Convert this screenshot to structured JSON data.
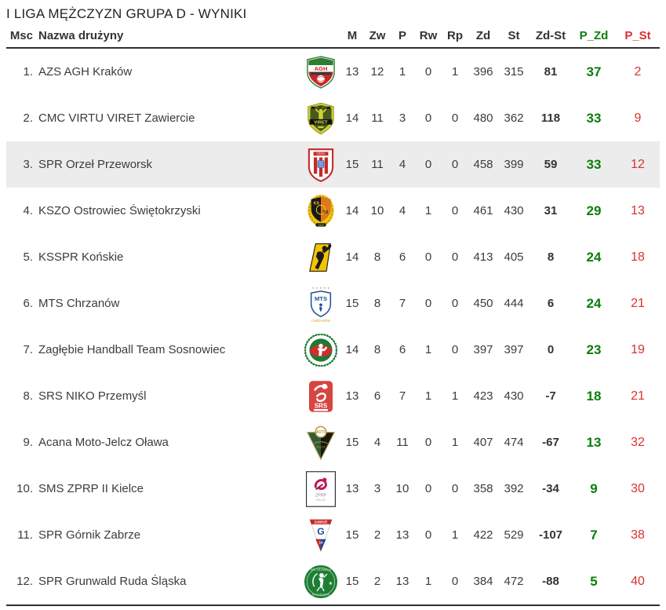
{
  "title": "I LIGA MĘŻCZYZN GRUPA D - WYNIKI",
  "colors": {
    "points_won_green": "#0b7d0b",
    "points_lost_red": "#da3030",
    "highlighted_row": "#ececec"
  },
  "table": {
    "headers": {
      "msc": "Msc",
      "team": "Nazwa drużyny",
      "m": "M",
      "zw": "Zw",
      "p": "P",
      "rw": "Rw",
      "rp": "Rp",
      "zd": "Zd",
      "st": "St",
      "zd_st": "Zd-St",
      "p_zd": "P_Zd",
      "p_st": "P_St"
    },
    "rows": [
      {
        "pos": "1.",
        "team": "AZS AGH Kraków",
        "logo": "agh-krakow-crest",
        "m": "13",
        "zw": "12",
        "p": "1",
        "rw": "0",
        "rp": "1",
        "zd": "396",
        "st": "315",
        "zd_st": "81",
        "p_zd": "37",
        "p_st": "2",
        "highlighted": false
      },
      {
        "pos": "2.",
        "team": "CMC VIRTU VIRET Zawiercie",
        "logo": "viret-zawiercie-crest",
        "m": "14",
        "zw": "11",
        "p": "3",
        "rw": "0",
        "rp": "0",
        "zd": "480",
        "st": "362",
        "zd_st": "118",
        "p_zd": "33",
        "p_st": "9",
        "highlighted": false
      },
      {
        "pos": "3.",
        "team": "SPR Orzeł Przeworsk",
        "logo": "orzel-przeworsk-crest",
        "m": "15",
        "zw": "11",
        "p": "4",
        "rw": "0",
        "rp": "0",
        "zd": "458",
        "st": "399",
        "zd_st": "59",
        "p_zd": "33",
        "p_st": "12",
        "highlighted": true
      },
      {
        "pos": "4.",
        "team": "KSZO Ostrowiec Świętokrzyski",
        "logo": "kszo-ostrowiec-crest",
        "m": "14",
        "zw": "10",
        "p": "4",
        "rw": "1",
        "rp": "0",
        "zd": "461",
        "st": "430",
        "zd_st": "31",
        "p_zd": "29",
        "p_st": "13",
        "highlighted": false
      },
      {
        "pos": "5.",
        "team": "KSSPR Końskie",
        "logo": "ksspr-konskie-crest",
        "m": "14",
        "zw": "8",
        "p": "6",
        "rw": "0",
        "rp": "0",
        "zd": "413",
        "st": "405",
        "zd_st": "8",
        "p_zd": "24",
        "p_st": "18",
        "highlighted": false
      },
      {
        "pos": "6.",
        "team": "MTS Chrzanów",
        "logo": "mts-chrzanow-crest",
        "m": "15",
        "zw": "8",
        "p": "7",
        "rw": "0",
        "rp": "0",
        "zd": "450",
        "st": "444",
        "zd_st": "6",
        "p_zd": "24",
        "p_st": "21",
        "highlighted": false
      },
      {
        "pos": "7.",
        "team": "Zagłębie Handball Team Sosnowiec",
        "logo": "zaglebie-sosnowiec-crest",
        "m": "14",
        "zw": "8",
        "p": "6",
        "rw": "1",
        "rp": "0",
        "zd": "397",
        "st": "397",
        "zd_st": "0",
        "p_zd": "23",
        "p_st": "19",
        "highlighted": false
      },
      {
        "pos": "8.",
        "team": "SRS NIKO Przemyśl",
        "logo": "srs-niko-przemysl-crest",
        "m": "13",
        "zw": "6",
        "p": "7",
        "rw": "1",
        "rp": "1",
        "zd": "423",
        "st": "430",
        "zd_st": "-7",
        "p_zd": "18",
        "p_st": "21",
        "highlighted": false
      },
      {
        "pos": "9.",
        "team": "Acana Moto-Jelcz Oława",
        "logo": "moto-jelcz-olawa-crest",
        "m": "15",
        "zw": "4",
        "p": "11",
        "rw": "0",
        "rp": "1",
        "zd": "407",
        "st": "474",
        "zd_st": "-67",
        "p_zd": "13",
        "p_st": "32",
        "highlighted": false
      },
      {
        "pos": "10.",
        "team": "SMS ZPRP II Kielce",
        "logo": "sms-zprp-kielce-crest",
        "m": "13",
        "zw": "3",
        "p": "10",
        "rw": "0",
        "rp": "0",
        "zd": "358",
        "st": "392",
        "zd_st": "-34",
        "p_zd": "9",
        "p_st": "30",
        "highlighted": false
      },
      {
        "pos": "11.",
        "team": "SPR Górnik Zabrze",
        "logo": "gornik-zabrze-crest",
        "m": "15",
        "zw": "2",
        "p": "13",
        "rw": "0",
        "rp": "1",
        "zd": "422",
        "st": "529",
        "zd_st": "-107",
        "p_zd": "7",
        "p_st": "38",
        "highlighted": false
      },
      {
        "pos": "12.",
        "team": "SPR Grunwald Ruda Śląska",
        "logo": "grunwald-ruda-slaska-crest",
        "m": "15",
        "zw": "2",
        "p": "13",
        "rw": "1",
        "rp": "0",
        "zd": "384",
        "st": "472",
        "zd_st": "-88",
        "p_zd": "5",
        "p_st": "40",
        "highlighted": false
      }
    ]
  }
}
